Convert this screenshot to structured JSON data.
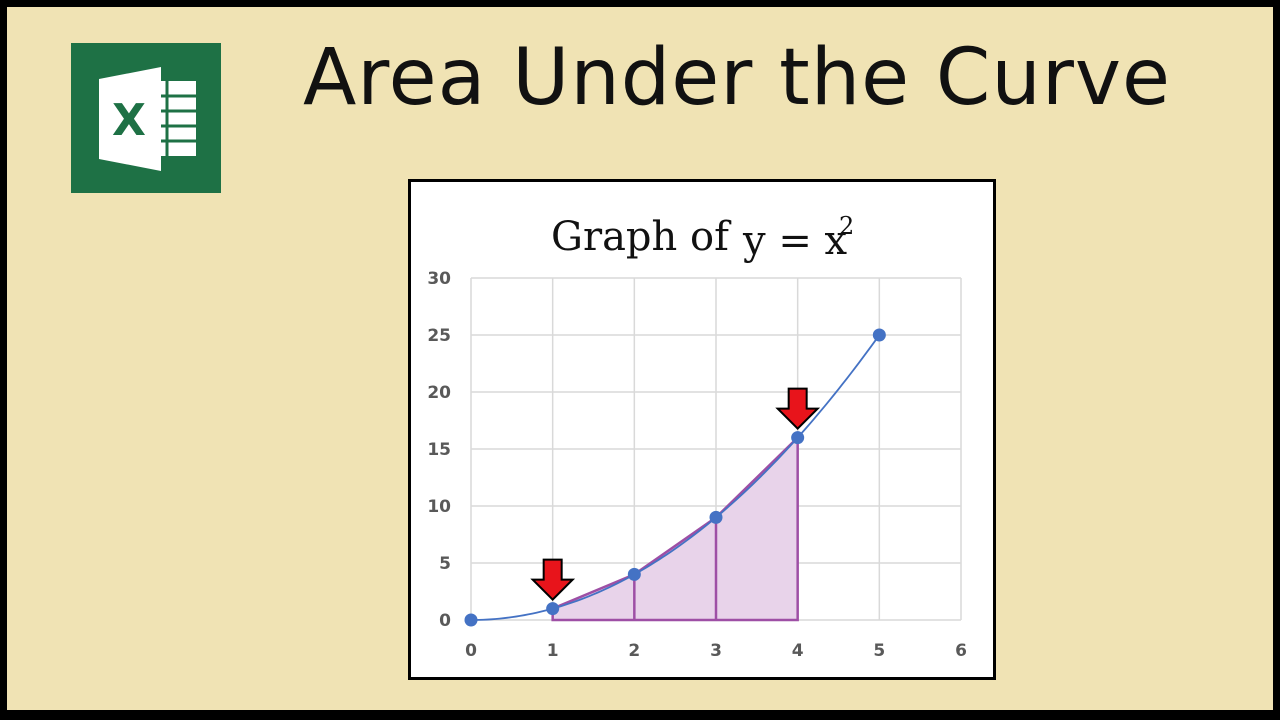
{
  "headline": "Area Under the Curve",
  "logo": {
    "icon": "excel-icon",
    "letter": "X",
    "color": "#1e7145"
  },
  "chart_data": {
    "type": "line",
    "title_prefix": "Graph of",
    "title_eq": "y = x",
    "title_exp": "2",
    "xlabel": "",
    "ylabel": "",
    "x": [
      0,
      1,
      2,
      3,
      4,
      5
    ],
    "y": [
      0,
      1,
      4,
      9,
      16,
      25
    ],
    "xlim": [
      0,
      6
    ],
    "ylim": [
      0,
      30
    ],
    "xticks": [
      0,
      1,
      2,
      3,
      4,
      5,
      6
    ],
    "yticks": [
      0,
      5,
      10,
      15,
      20,
      25,
      30
    ],
    "grid": true,
    "shaded_region": {
      "x_from": 1,
      "x_to": 4,
      "dividers": [
        2,
        3
      ]
    },
    "arrows_at_x": [
      1,
      4
    ],
    "colors": {
      "series": "#4472c4",
      "shade_fill": "#e8d3ea",
      "shade_line": "#9e4fa5",
      "arrow": "#e8141b",
      "grid": "#d9d9d9"
    }
  }
}
